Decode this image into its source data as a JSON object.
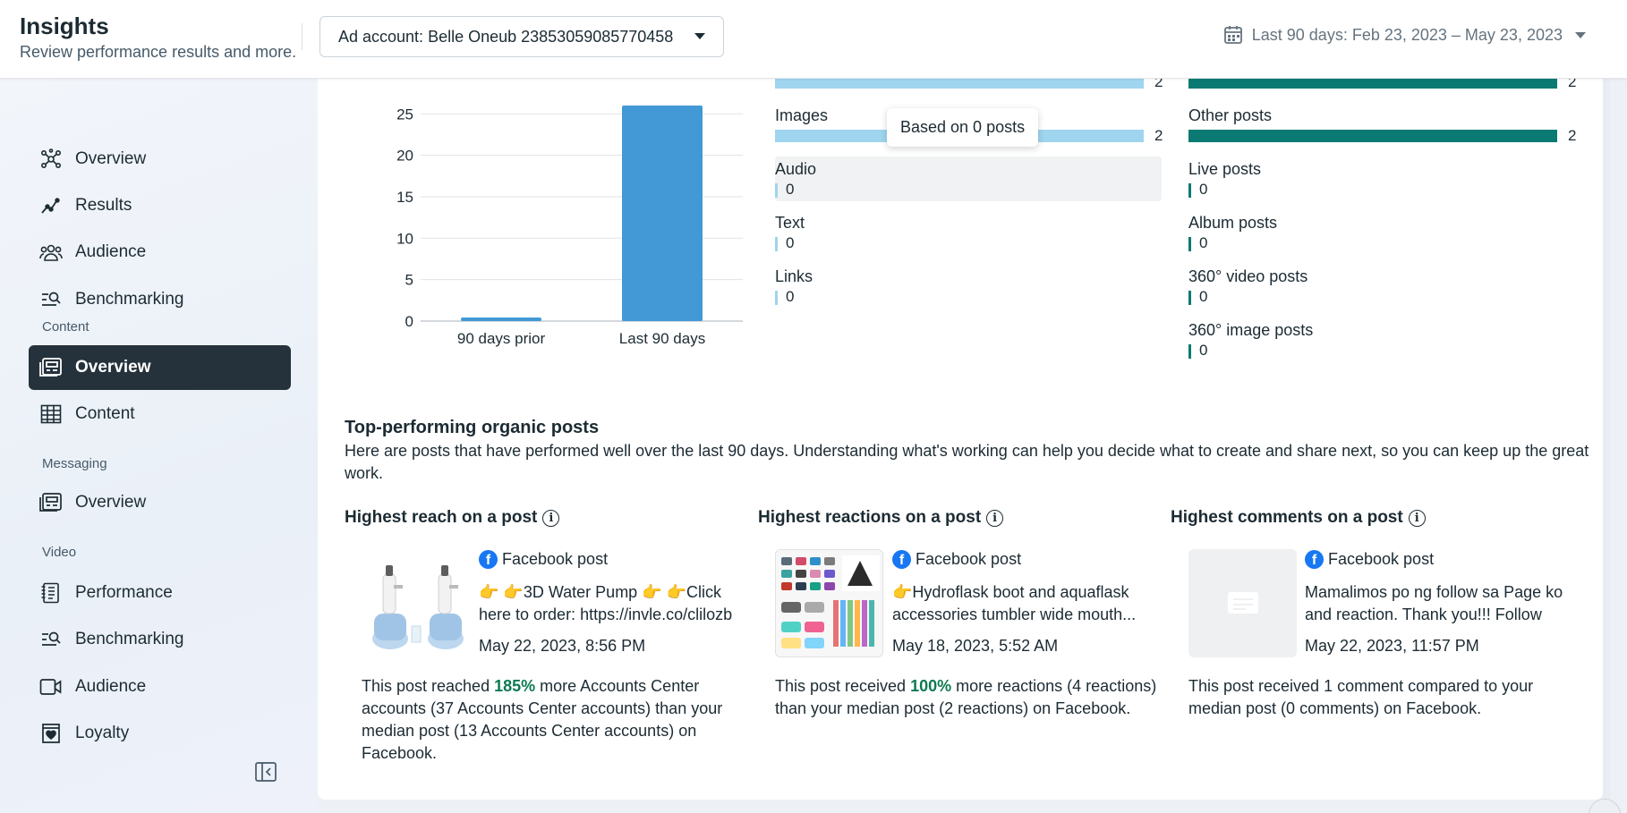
{
  "header": {
    "title": "Insights",
    "subtitle": "Review performance results and more.",
    "ad_account": "Ad account: Belle Oneub 23853059085770458",
    "date_range": "Last 90 days: Feb 23, 2023 – May 23, 2023"
  },
  "sidebar": {
    "items": [
      {
        "label": "Overview",
        "icon": "network-icon"
      },
      {
        "label": "Results",
        "icon": "trend-line-icon"
      },
      {
        "label": "Audience",
        "icon": "people-icon"
      },
      {
        "label": "Benchmarking",
        "icon": "benchmark-icon"
      }
    ],
    "content_section": "Content",
    "content_items": [
      {
        "label": "Overview",
        "icon": "content-overview-icon",
        "active": true
      },
      {
        "label": "Content",
        "icon": "table-icon"
      }
    ],
    "messaging_section": "Messaging",
    "messaging_items": [
      {
        "label": "Overview",
        "icon": "message-overview-icon"
      }
    ],
    "video_section": "Video",
    "video_items": [
      {
        "label": "Performance",
        "icon": "notebook-icon"
      },
      {
        "label": "Benchmarking",
        "icon": "benchmark-icon"
      },
      {
        "label": "Audience",
        "icon": "video-camera-icon"
      },
      {
        "label": "Loyalty",
        "icon": "heart-badge-icon"
      }
    ]
  },
  "chart_data": {
    "type": "bar",
    "categories": [
      "90 days prior",
      "Last 90 days"
    ],
    "values": [
      0,
      26
    ],
    "yticks": [
      "0",
      "5",
      "10",
      "15",
      "20",
      "25"
    ],
    "ylim": [
      0,
      26
    ],
    "color": "#4299d6"
  },
  "breakdown_left": {
    "color": "#9fd5ef",
    "items": [
      {
        "label": "",
        "value": "2",
        "fraction": 1.0
      },
      {
        "label": "Images",
        "value": "2",
        "fraction": 1.0
      },
      {
        "label": "Audio",
        "value": "0",
        "fraction": 0
      },
      {
        "label": "Text",
        "value": "0",
        "fraction": 0
      },
      {
        "label": "Links",
        "value": "0",
        "fraction": 0
      }
    ]
  },
  "breakdown_right": {
    "color": "#0b7a72",
    "items": [
      {
        "label": "",
        "value": "2",
        "fraction": 1.0
      },
      {
        "label": "Other posts",
        "value": "2",
        "fraction": 1.0
      },
      {
        "label": "Live posts",
        "value": "0",
        "fraction": 0
      },
      {
        "label": "Album posts",
        "value": "0",
        "fraction": 0
      },
      {
        "label": "360° video posts",
        "value": "0",
        "fraction": 0
      },
      {
        "label": "360° image posts",
        "value": "0",
        "fraction": 0
      }
    ]
  },
  "tooltip": "Based on 0 posts",
  "top_posts": {
    "title": "Top-performing organic posts",
    "description": "Here are posts that have performed well over the last 90 days. Understanding what's working can help you decide what to create and share next, so you can keep up the great work.",
    "columns": [
      {
        "title": "Highest reach on a post",
        "source": "Facebook post",
        "text": "👉 👉3D Water Pump 👉 👉Click here to order: https://invle.co/clilozb 👉...",
        "date": "May 22, 2023, 8:56 PM",
        "summary_pre": "This post reached ",
        "summary_pct": "185%",
        "summary_post": " more Accounts Center accounts (37 Accounts Center accounts) than your median post (13 Accounts Center accounts) on Facebook."
      },
      {
        "title": "Highest reactions on a post",
        "source": "Facebook post",
        "text": "👉Hydroflask boot and aquaflask accessories tumbler wide mouth...",
        "date": "May 18, 2023, 5:52 AM",
        "summary_pre": "This post received ",
        "summary_pct": "100%",
        "summary_post": " more reactions (4 reactions) than your median post (2 reactions) on Facebook."
      },
      {
        "title": "Highest comments on a post",
        "source": "Facebook post",
        "text": "Mamalimos po ng follow sa Page ko and reaction. Thank you!!! Follow bac...",
        "date": "May 22, 2023, 11:57 PM",
        "summary_pre": "This post received 1 comment compared to your median post (0 comments) on Facebook.",
        "summary_pct": "",
        "summary_post": ""
      }
    ],
    "info_glyph": "i",
    "fb_glyph": "f"
  }
}
